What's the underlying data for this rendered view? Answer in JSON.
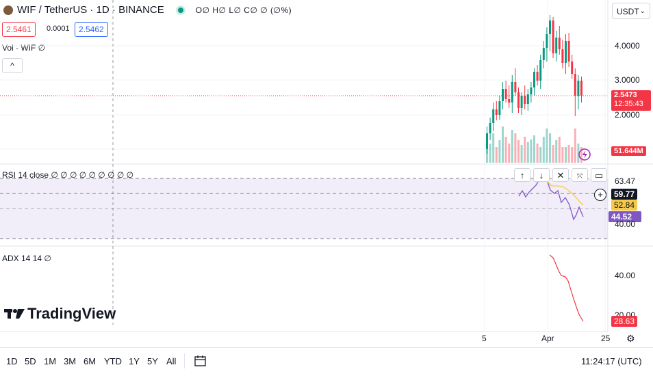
{
  "header": {
    "symbol": "WIF / TetherUS · 1D · BINANCE",
    "ohlc": "O∅ H∅ L∅ C∅ ∅ (∅%)",
    "bid": "2.5461",
    "spread": "0.0001",
    "ask": "2.5462",
    "currency": "USDT"
  },
  "volume_legend": "Vol · WIF  ∅",
  "collapse_label": "^",
  "rsi_legend": "RSI 14 close  ∅ ∅ ∅ ∅ ∅ ∅ ∅ ∅ ∅",
  "adx_legend": "ADX 14 14  ∅",
  "price_axis": {
    "ticks": [
      "4.0000",
      "3.0000",
      "2.0000"
    ],
    "last_price": "2.5473",
    "countdown": "12:35:43",
    "volume_tag": "51.644M"
  },
  "rsi_axis": {
    "ticks": [
      "63.47",
      "40.00"
    ],
    "tag_cursor": "59.77",
    "tag_yellow": "52.84",
    "tag_purple": "44.52"
  },
  "adx_axis": {
    "ticks": [
      "40.00",
      "20.00"
    ],
    "tag": "28.63"
  },
  "time_axis": [
    "5",
    "Apr",
    "25"
  ],
  "timeframes": [
    "1D",
    "5D",
    "1M",
    "3M",
    "6M",
    "YTD",
    "1Y",
    "5Y",
    "All"
  ],
  "clock": "11:24:17 (UTC)",
  "brand": "TradingView",
  "colors": {
    "up": "#089981",
    "down": "#f23645",
    "rsi": "#7e57c2",
    "rsi_ma": "#f7c948",
    "adx": "#f23645",
    "accent": "#2962ff"
  }
}
